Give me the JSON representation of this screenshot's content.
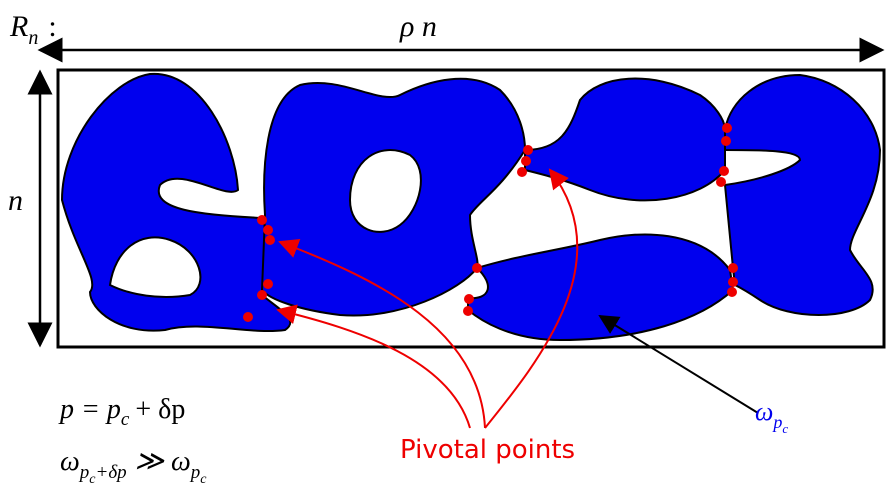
{
  "labels": {
    "region": {
      "base": "R",
      "sub": "n",
      "suffix": ":"
    },
    "width": "ρ n",
    "height": "n",
    "equation": {
      "lhs": "p = p",
      "sub": "c",
      "rhs": "+ δp"
    },
    "inequality": {
      "base": "ω",
      "sub": "p",
      "subsub": "c",
      "subrest": "+δp",
      "relation": "≫ ω",
      "sub2": "p",
      "subsub2": "c"
    },
    "pivotal": "Pivotal points",
    "cluster": {
      "base": "ω",
      "sub": "p",
      "subsub": "c"
    }
  }
}
